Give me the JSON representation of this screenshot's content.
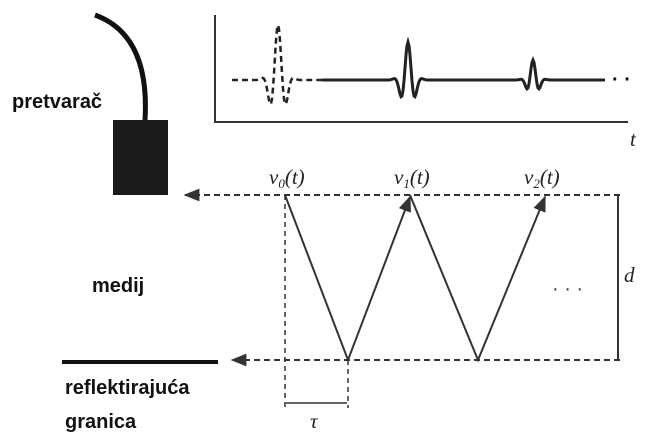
{
  "labels": {
    "transducer": "pretvarač",
    "medium": "medij",
    "boundary_line1": "reflektirajuća",
    "boundary_line2": "granica",
    "time_axis": "t",
    "distance": "d",
    "delay": "τ",
    "dots_wave": "· ·",
    "dots_path": "· · ·"
  },
  "echoes": [
    {
      "base": "v",
      "sub": "0",
      "arg": "(t)"
    },
    {
      "base": "v",
      "sub": "1",
      "arg": "(t)"
    },
    {
      "base": "v",
      "sub": "2",
      "arg": "(t)"
    }
  ]
}
